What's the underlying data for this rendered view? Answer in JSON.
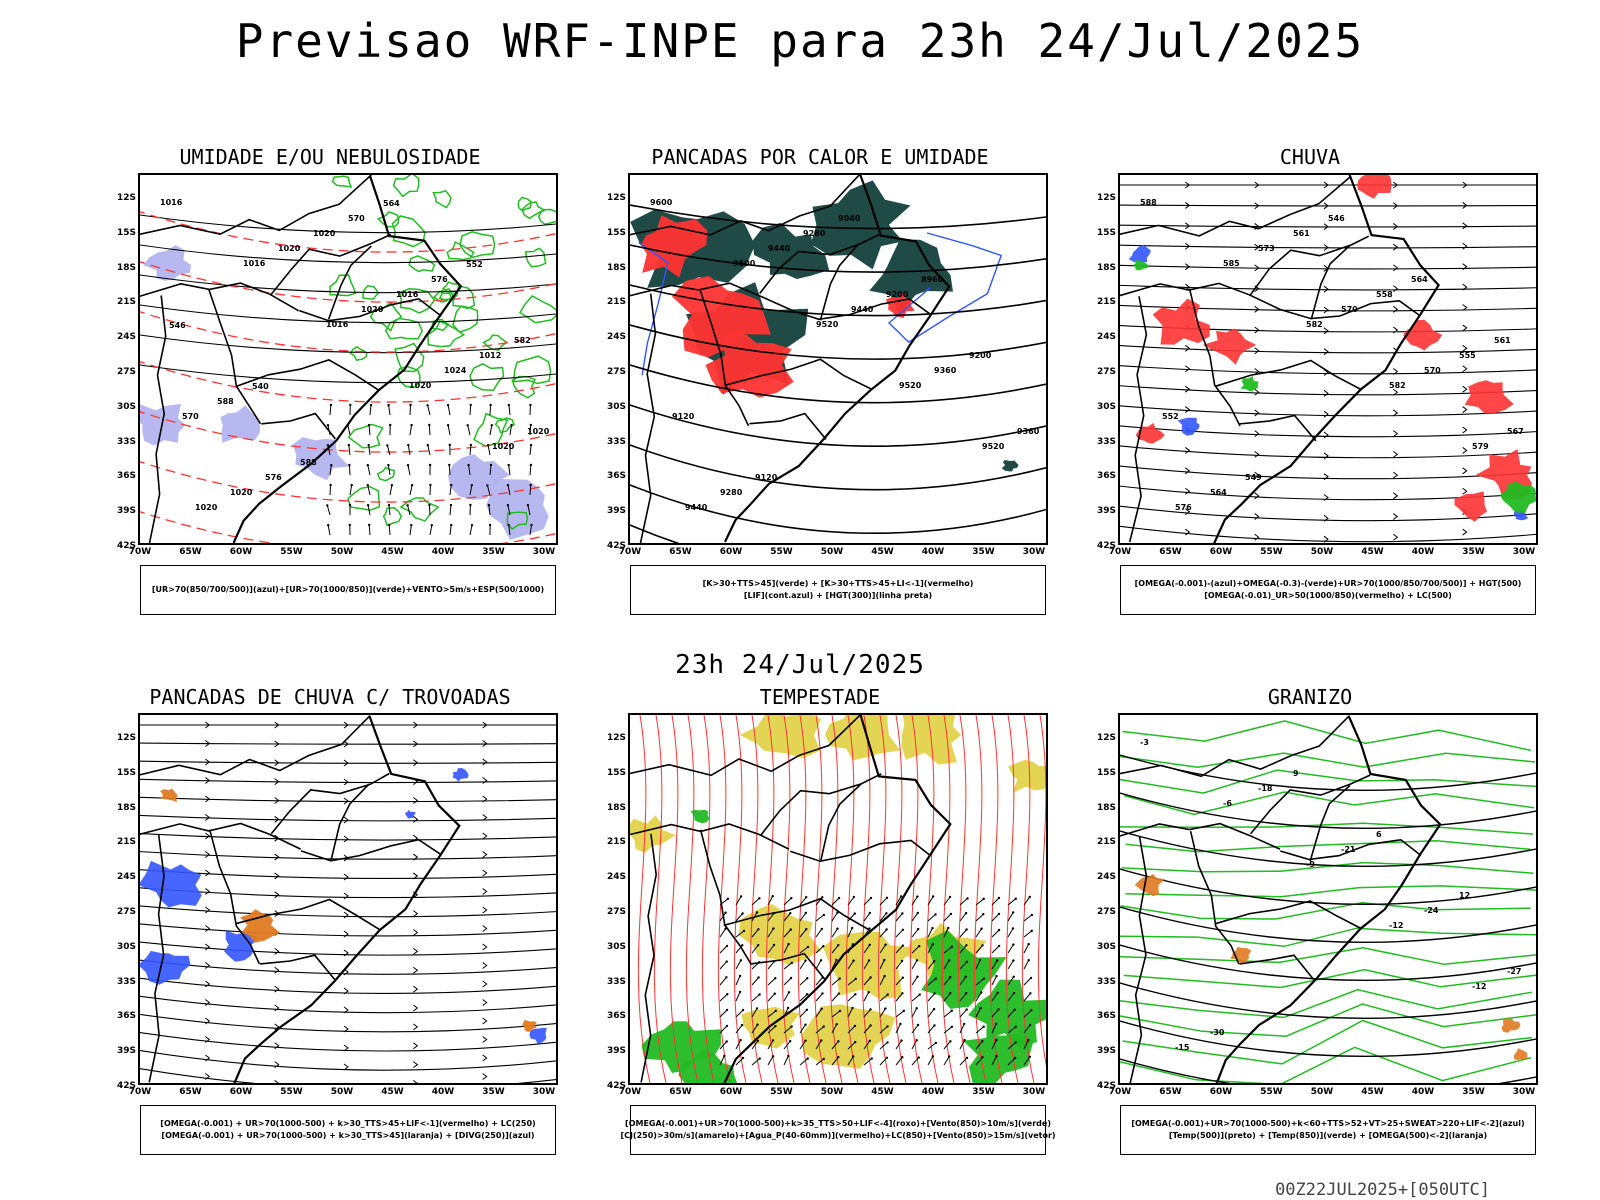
{
  "title": "Previsao WRF-INPE  para 23h 24/Jul/2025",
  "mid_title": "23h 24/Jul/2025",
  "footer": "00Z22JUL2025+[050UTC]",
  "lat_labels": [
    "12S",
    "15S",
    "18S",
    "21S",
    "24S",
    "27S",
    "30S",
    "33S",
    "36S",
    "39S",
    "42S"
  ],
  "lon_labels": [
    "70W",
    "65W",
    "60W",
    "55W",
    "50W",
    "45W",
    "40W",
    "35W",
    "30W"
  ],
  "colors": {
    "blue": "#3355ff",
    "green": "#22bb22",
    "red": "#ff3333",
    "dark": "#1f4a46",
    "yellow": "#e0d040",
    "orange": "#e07a20",
    "lavender": "#b0b0ee"
  },
  "panels": [
    {
      "title": "UMIDADE E/OU NEBULOSIDADE",
      "legend": [
        "[UR>70(850/700/500)](azul)+[UR>70(1000/850)](verde)+VENTO>5m/s+ESP(500/1000)"
      ],
      "labels": [
        "1016",
        "1016",
        "1016",
        "1020",
        "1020",
        "1020",
        "1020",
        "1020",
        "1024",
        "1020",
        "1020",
        "1020",
        "1016",
        "1012",
        "570",
        "576",
        "570",
        "576",
        "582",
        "588",
        "588",
        "564",
        "552",
        "546",
        "540"
      ]
    },
    {
      "title": "PANCADAS POR CALOR E UMIDADE",
      "legend": [
        "[K>30+TTS>45](verde) + [K>30+TTS>45+LI<-1](vermelho)",
        "[LIF](cont.azul) + [HGT(300)](linha preta)"
      ],
      "labels": [
        "9600",
        "9600",
        "9520",
        "9520",
        "9520",
        "9440",
        "9440",
        "9440",
        "9360",
        "9360",
        "9280",
        "9280",
        "9200",
        "9200",
        "9120",
        "9120",
        "9040",
        "8960"
      ]
    },
    {
      "title": "CHUVA",
      "legend": [
        "[OMEGA(-0.001)-(azul)+OMEGA(-0.3)-(verde)+UR>70(1000/850/700/500)] + HGT(500)",
        "[OMEGA(-0.01)_UR>50(1000/850)(vermelho) + LC(500)"
      ],
      "labels": [
        "588",
        "585",
        "582",
        "582",
        "579",
        "576",
        "573",
        "570",
        "570",
        "567",
        "564",
        "561",
        "558",
        "555",
        "552",
        "549",
        "546",
        "564",
        "561"
      ]
    },
    {
      "title": "PANCADAS DE CHUVA C/ TROVOADAS",
      "legend": [
        "[OMEGA(-0.001) + UR>70(1000-500) + k>30_TTS>45+LIF<-1](vermelho) + LC(250)",
        "[OMEGA(-0.001) + UR>70(1000-500) + k>30_TTS>45](laranja) + [DIVG(250)](azul)"
      ],
      "labels": []
    },
    {
      "title": "TEMPESTADE",
      "legend": [
        "[OMEGA(-0.001)+UR>70(1000-500)+k>35_TTS>50+LIF<-4](roxo)+[Vento(850)>10m/s](verde)",
        "[CJ(250)>30m/s](amarelo)+[Agua_P(40-60mm)](vermelho)+LC(850)+[Vento(850)>15m/s](vetor)"
      ],
      "labels": []
    },
    {
      "title": "GRANIZO",
      "legend": [
        "[OMEGA(-0.001)+UR>70(1000-500)+k<60+TTS>52+VT>25+SWEAT>220+LIF<-2](azul)",
        "[Temp(500)](preto) + [Temp(850)](verde) + [OMEGA(500)<-2](laranja)"
      ],
      "labels": [
        "-3",
        "-6",
        "-9",
        "-12",
        "-12",
        "-15",
        "-18",
        "-21",
        "-24",
        "-27",
        "-30",
        "9",
        "6",
        "12"
      ]
    }
  ]
}
